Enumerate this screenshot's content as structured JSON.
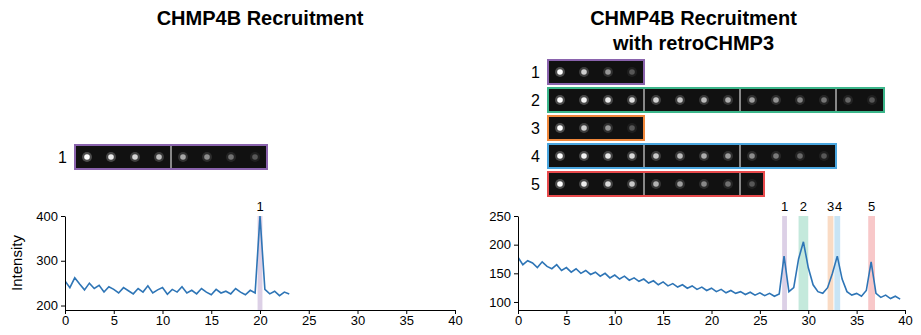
{
  "chart_data": [
    {
      "type": "line",
      "title": "CHMP4B Recruitment",
      "ylabel": "Intensity",
      "color": "#2e75b6",
      "x": [
        0,
        0.5,
        1,
        1.5,
        2,
        2.5,
        3,
        3.5,
        4,
        4.5,
        5,
        5.5,
        6,
        6.5,
        7,
        7.5,
        8,
        8.5,
        9,
        9.5,
        10,
        10.5,
        11,
        11.5,
        12,
        12.5,
        13,
        13.5,
        14,
        14.5,
        15,
        15.5,
        16,
        16.5,
        17,
        17.5,
        18,
        18.5,
        19,
        19.5,
        20,
        20.5,
        21,
        21.5,
        22,
        22.5,
        23
      ],
      "values": [
        255,
        240,
        262,
        248,
        235,
        250,
        238,
        245,
        230,
        242,
        236,
        228,
        240,
        233,
        226,
        238,
        230,
        244,
        228,
        235,
        240,
        225,
        236,
        230,
        242,
        228,
        234,
        226,
        238,
        230,
        224,
        236,
        228,
        232,
        226,
        238,
        230,
        224,
        234,
        228,
        400,
        236,
        226,
        232,
        222,
        230,
        226
      ],
      "xlim": [
        0,
        40
      ],
      "xticks": [
        0,
        5,
        10,
        15,
        20,
        25,
        30,
        35,
        40
      ],
      "ylim": [
        190,
        400
      ],
      "yticks": [
        200,
        300,
        400
      ],
      "highlights": [
        {
          "label": "1",
          "x0": 19.75,
          "x1": 20.25,
          "color": "#8a63ad"
        }
      ],
      "strips": [
        {
          "label": "1",
          "color": "#8a63ad",
          "frames": 8
        }
      ]
    },
    {
      "type": "line",
      "title": "CHMP4B Recruitment with retroCHMP3",
      "color": "#2e75b6",
      "x": [
        0,
        0.5,
        1,
        1.5,
        2,
        2.5,
        3,
        3.5,
        4,
        4.5,
        5,
        5.5,
        6,
        6.5,
        7,
        7.5,
        8,
        8.5,
        9,
        9.5,
        10,
        10.5,
        11,
        11.5,
        12,
        12.5,
        13,
        13.5,
        14,
        14.5,
        15,
        15.5,
        16,
        16.5,
        17,
        17.5,
        18,
        18.5,
        19,
        19.5,
        20,
        20.5,
        21,
        21.5,
        22,
        22.5,
        23,
        23.5,
        24,
        24.5,
        25,
        25.5,
        26,
        26.5,
        27,
        27.5,
        28,
        28.5,
        29,
        29.5,
        30,
        30.5,
        31,
        31.5,
        32,
        32.5,
        33,
        33.5,
        34,
        34.5,
        35,
        35.5,
        36,
        36.5,
        37,
        37.5,
        38,
        38.5,
        39,
        39.5
      ],
      "values": [
        178,
        165,
        172,
        168,
        160,
        170,
        162,
        158,
        165,
        155,
        160,
        152,
        158,
        150,
        155,
        148,
        152,
        145,
        150,
        142,
        147,
        140,
        145,
        138,
        142,
        136,
        140,
        133,
        137,
        130,
        135,
        128,
        132,
        126,
        130,
        124,
        128,
        122,
        126,
        120,
        124,
        118,
        122,
        116,
        120,
        115,
        118,
        113,
        117,
        112,
        116,
        111,
        115,
        110,
        114,
        180,
        118,
        125,
        175,
        205,
        160,
        130,
        118,
        115,
        125,
        150,
        180,
        140,
        118,
        112,
        115,
        110,
        120,
        170,
        115,
        108,
        112,
        106,
        110,
        105
      ],
      "xlim": [
        0,
        40
      ],
      "xticks": [
        0,
        5,
        10,
        15,
        20,
        25,
        30,
        35,
        40
      ],
      "ylim": [
        86,
        250
      ],
      "yticks": [
        100,
        150,
        200,
        250
      ],
      "highlights": [
        {
          "label": "1",
          "x0": 27.3,
          "x1": 27.8,
          "color": "#8a63ad"
        },
        {
          "label": "2",
          "x0": 29.0,
          "x1": 30.0,
          "color": "#3bb58a"
        },
        {
          "label": "3",
          "x0": 32.0,
          "x1": 32.6,
          "color": "#f0873a"
        },
        {
          "label": "4",
          "x0": 32.7,
          "x1": 33.3,
          "color": "#4aa6df"
        },
        {
          "label": "5",
          "x0": 36.2,
          "x1": 36.9,
          "color": "#e84a4c"
        }
      ],
      "strips": [
        {
          "label": "1",
          "color": "#8a63ad",
          "frames": 4
        },
        {
          "label": "2",
          "color": "#3bb58a",
          "frames": 14
        },
        {
          "label": "3",
          "color": "#f0873a",
          "frames": 4
        },
        {
          "label": "4",
          "color": "#4aa6df",
          "frames": 12
        },
        {
          "label": "5",
          "color": "#e84a4c",
          "frames": 9
        }
      ]
    }
  ]
}
